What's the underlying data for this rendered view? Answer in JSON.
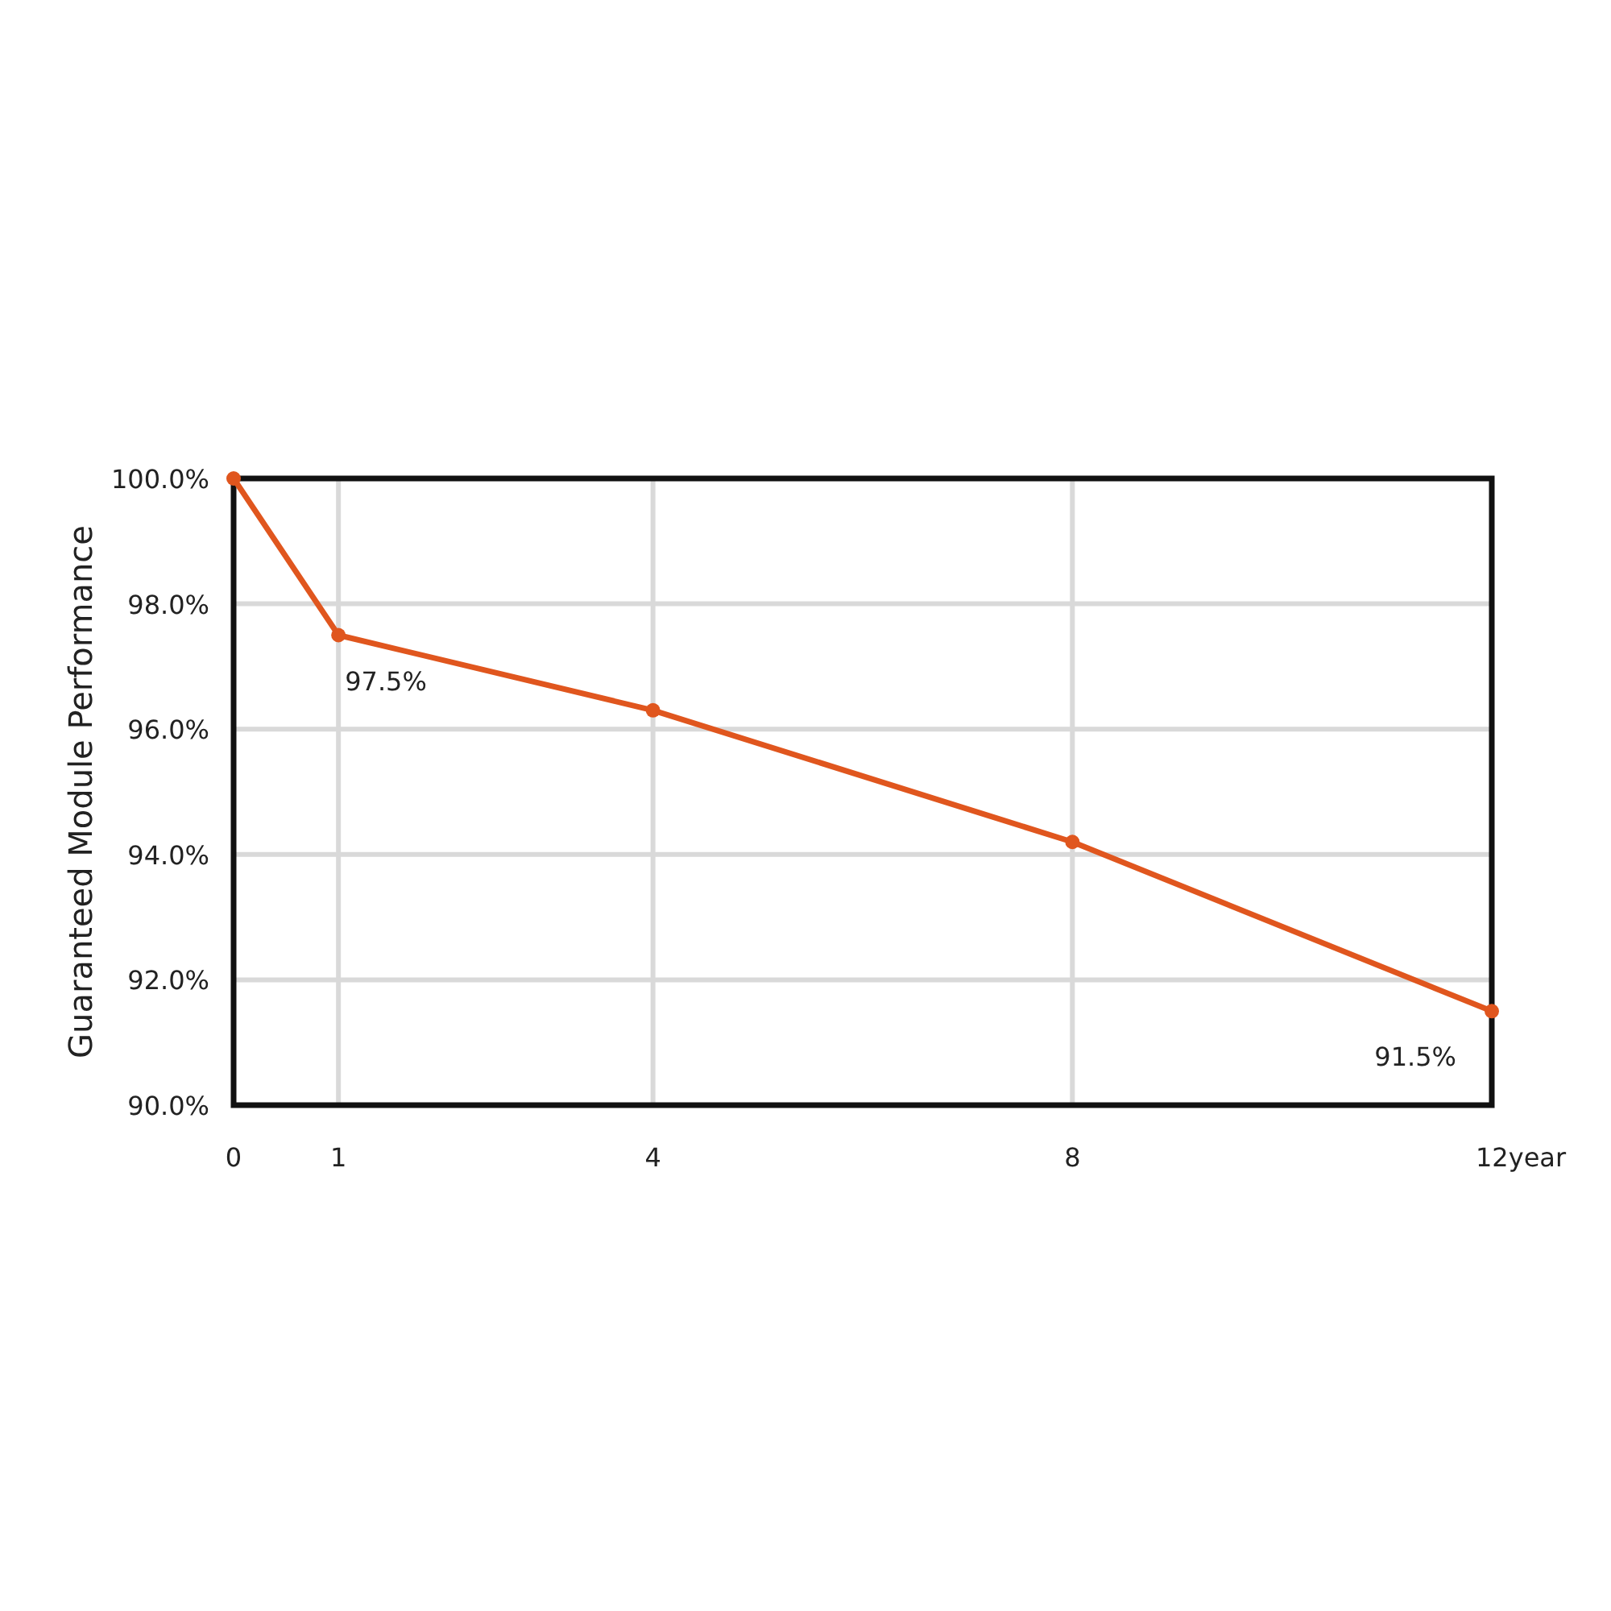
{
  "chart_data": {
    "type": "line",
    "ylabel": "Guaranteed Module Performance",
    "x": [
      0,
      1,
      4,
      8,
      12
    ],
    "series": [
      {
        "color": "#e0561e",
        "values": [
          100,
          97.5,
          96.3,
          94.2,
          91.5
        ],
        "value_labels": [
          null,
          "97.5%",
          null,
          null,
          "91.5%"
        ]
      }
    ],
    "xlim": [
      0,
      12
    ],
    "xticks": [
      0,
      1,
      4,
      8,
      {
        "value": 12,
        "label": "12year"
      }
    ],
    "ylim": [
      90,
      100
    ],
    "yticks": [
      {
        "value": 90,
        "label": "90.0%"
      },
      {
        "value": 92,
        "label": "92.0%"
      },
      {
        "value": 94,
        "label": "94.0%"
      },
      {
        "value": 96,
        "label": "96.0%"
      },
      {
        "value": 98,
        "label": "98.0%"
      },
      {
        "value": 100,
        "label": "100.0%"
      }
    ],
    "grid": true,
    "marker": "circle",
    "line_style": "solid"
  }
}
